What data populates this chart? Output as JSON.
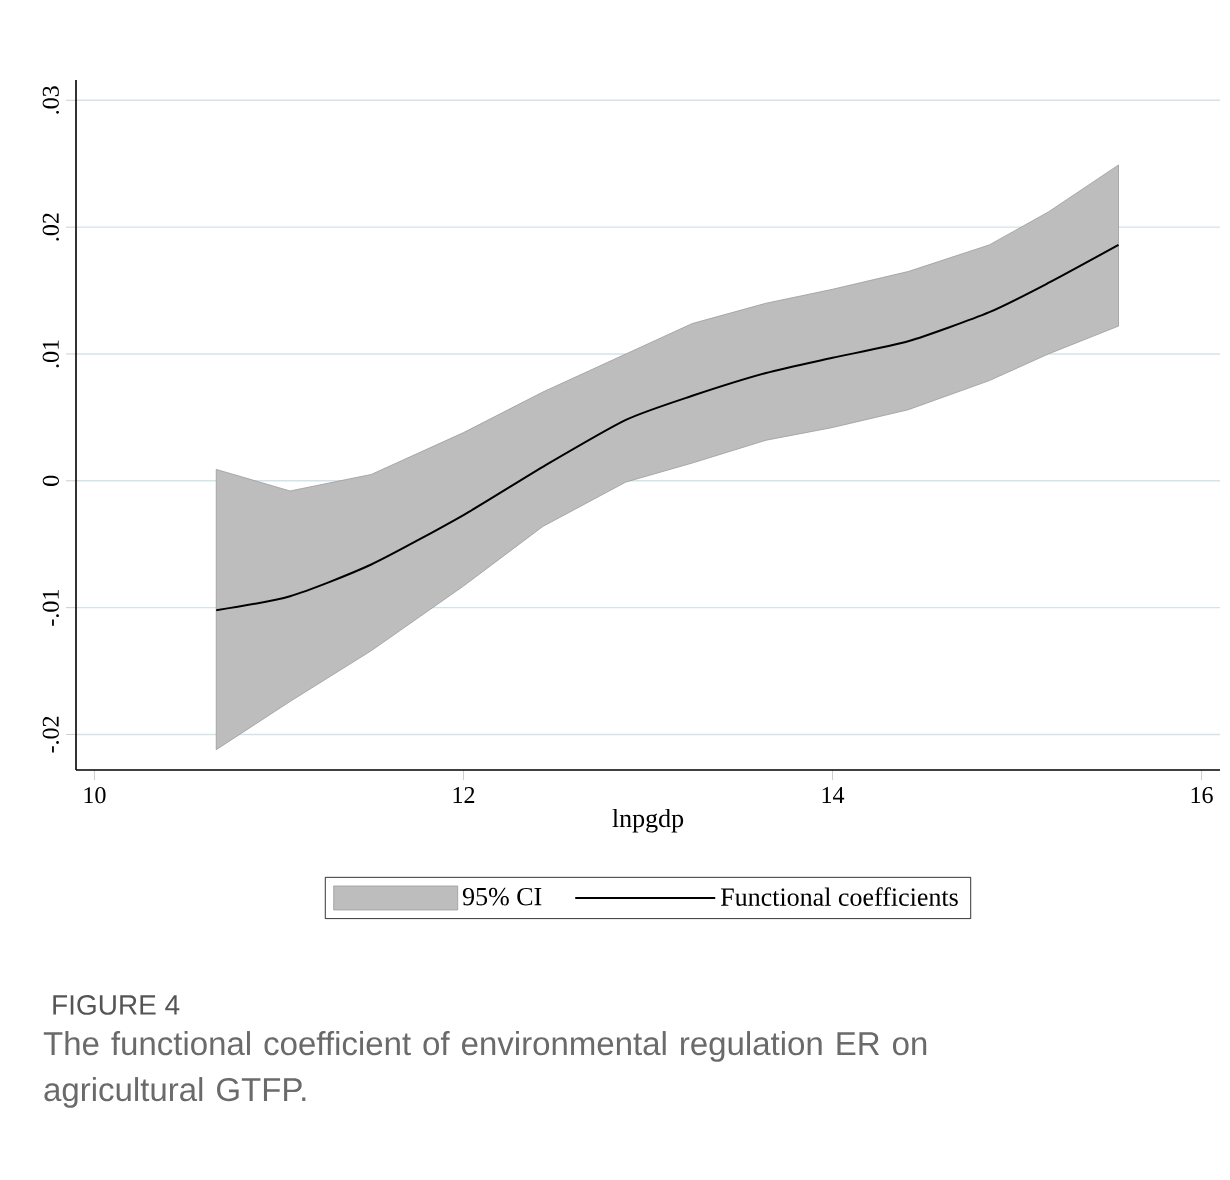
{
  "chart_data": {
    "type": "line",
    "xlabel": "lnpgdp",
    "x": [
      10.66,
      11.06,
      11.5,
      12.0,
      12.43,
      12.88,
      13.24,
      13.64,
      14.0,
      14.41,
      14.85,
      15.17,
      15.55
    ],
    "series": [
      {
        "name": "Functional coefficients",
        "color": "#000000",
        "values": [
          -0.0102,
          -0.0091,
          -0.0066,
          -0.0027,
          0.0011,
          0.0048,
          0.0067,
          0.0085,
          0.0097,
          0.011,
          0.0133,
          0.0156,
          0.0186
        ],
        "lower": [
          -0.0212,
          -0.0174,
          -0.0134,
          -0.0083,
          -0.0036,
          -0.0001,
          0.0014,
          0.0032,
          0.0042,
          0.0056,
          0.0079,
          0.01,
          0.0122
        ],
        "upper": [
          0.0009,
          -0.0008,
          0.0005,
          0.0038,
          0.007,
          0.01,
          0.0124,
          0.014,
          0.0151,
          0.0165,
          0.0186,
          0.0212,
          0.0249
        ]
      }
    ],
    "xlim": [
      9.9,
      16.1
    ],
    "ylim": [
      -0.0228,
      0.0316
    ],
    "xticks": [
      10,
      12,
      14,
      16
    ],
    "yticks": [
      {
        "value": -0.02,
        "label": "-.02"
      },
      {
        "value": -0.01,
        "label": "-.01"
      },
      0,
      {
        "value": 0.01,
        "label": ".01"
      },
      {
        "value": 0.02,
        "label": ".02"
      },
      {
        "value": 0.03,
        "label": ".03"
      }
    ],
    "grid": "y",
    "legend": "bottom",
    "annotations": [
      "95% CI",
      "FIGURE 4",
      "The functional coefficient of environmental regulation ER on agricultural GTFP."
    ]
  }
}
